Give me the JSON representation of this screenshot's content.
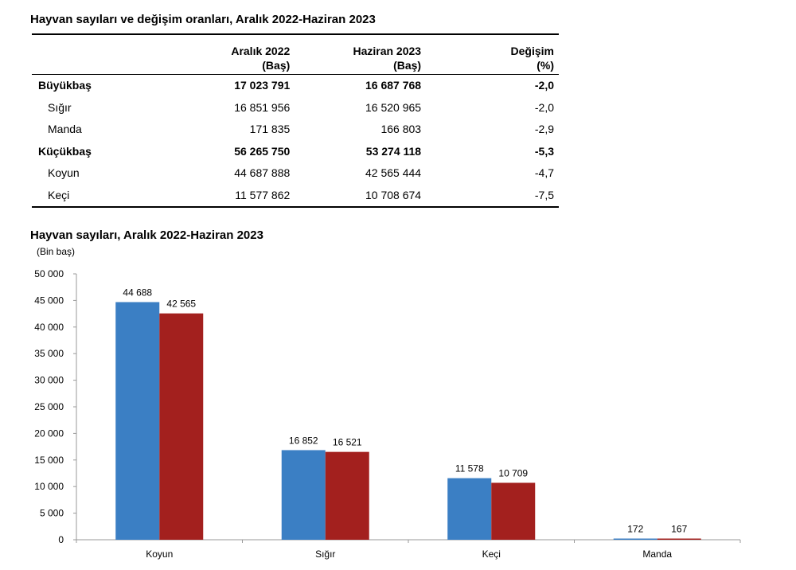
{
  "table": {
    "title": "Hayvan sayıları ve değişim oranları, Aralık 2022-Haziran 2023",
    "headers": [
      {
        "line1": "",
        "line2": ""
      },
      {
        "line1": "Aralık 2022",
        "line2": "(Baş)"
      },
      {
        "line1": "Haziran 2023",
        "line2": "(Baş)"
      },
      {
        "line1": "Değişim",
        "line2": "(%)"
      }
    ],
    "rows": [
      {
        "name": "Büyükbaş",
        "bold": true,
        "dec": "17 023 791",
        "jun": "16 687 768",
        "chg": "-2,0"
      },
      {
        "name": "Sığır",
        "bold": false,
        "dec": "16 851 956",
        "jun": "16 520 965",
        "chg": "-2,0"
      },
      {
        "name": "Manda",
        "bold": false,
        "dec": "171 835",
        "jun": "166 803",
        "chg": "-2,9"
      },
      {
        "name": "Küçükbaş",
        "bold": true,
        "dec": "56 265 750",
        "jun": "53 274 118",
        "chg": "-5,3"
      },
      {
        "name": "Koyun",
        "bold": false,
        "dec": "44 687 888",
        "jun": "42 565 444",
        "chg": "-4,7"
      },
      {
        "name": "Keçi",
        "bold": false,
        "dec": "11 577 862",
        "jun": "10 708 674",
        "chg": "-7,5"
      }
    ]
  },
  "chart_data": {
    "type": "bar",
    "title": "Hayvan sayıları, Aralık 2022-Haziran 2023",
    "ylabel": "(Bin baş)",
    "categories": [
      "Koyun",
      "Sığır",
      "Keçi",
      "Manda"
    ],
    "series": [
      {
        "values": [
          44688,
          16852,
          11578,
          172
        ],
        "labels": [
          "44 688",
          "16 852",
          "11 578",
          "172"
        ],
        "color": "#3b7fc4"
      },
      {
        "values": [
          42565,
          16521,
          10709,
          167
        ],
        "labels": [
          "42 565",
          "16 521",
          "10 709",
          "167"
        ],
        "color": "#a3201e"
      }
    ],
    "ylim": [
      0,
      50000
    ],
    "yticks": [
      0,
      5000,
      10000,
      15000,
      20000,
      25000,
      30000,
      35000,
      40000,
      45000,
      50000
    ],
    "ytick_labels": [
      "0",
      "5 000",
      "10 000",
      "15 000",
      "20 000",
      "25 000",
      "30 000",
      "35 000",
      "40 000",
      "45 000",
      "50 000"
    ],
    "grid": false,
    "legend": "none"
  }
}
